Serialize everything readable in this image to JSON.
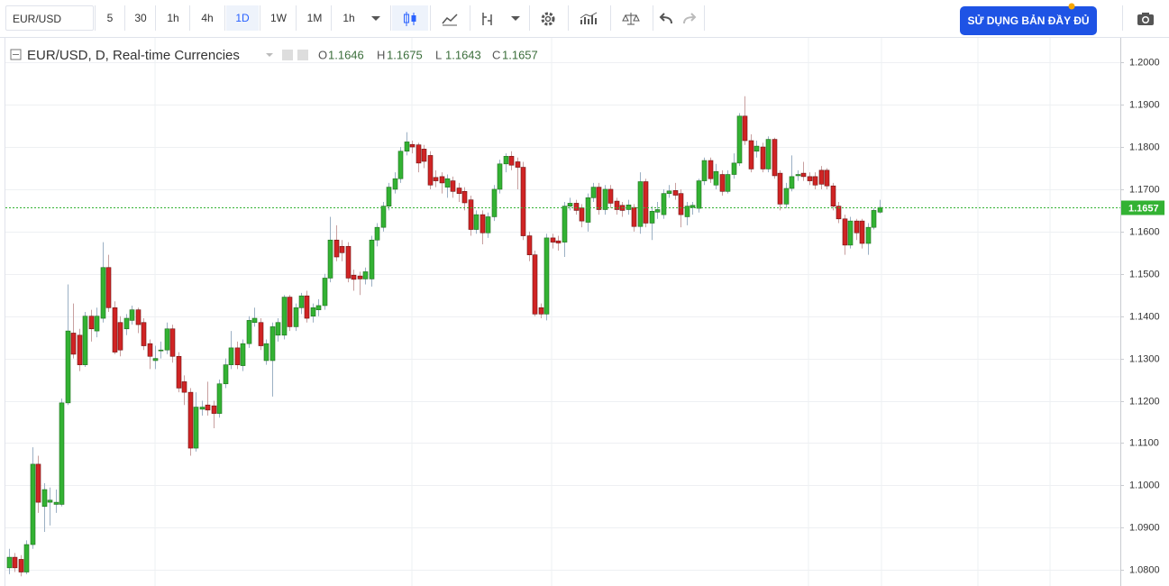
{
  "toolbar": {
    "symbol": "EUR/USD",
    "intervals": [
      "5",
      "30",
      "1h",
      "4h",
      "1D",
      "1W",
      "1M",
      "1h"
    ],
    "cta": "SỬ DỤNG BẢN ĐẦY ĐỦ"
  },
  "chart_data": {
    "type": "candlestick",
    "title": "EUR/USD, D, Real-time Currencies",
    "ohlc_labels": [
      "O",
      "H",
      "L",
      "C"
    ],
    "up_color": "#33b233",
    "down_color": "#d02424",
    "ylim": [
      1.0762,
      1.2058
    ],
    "yticks": [
      {
        "value": 1.08,
        "label": "1.0800"
      },
      {
        "value": 1.09,
        "label": "1.0900"
      },
      {
        "value": 1.1,
        "label": "1.1000"
      },
      {
        "value": 1.11,
        "label": "1.1100"
      },
      {
        "value": 1.12,
        "label": "1.1200"
      },
      {
        "value": 1.13,
        "label": "1.1300"
      },
      {
        "value": 1.14,
        "label": "1.1400"
      },
      {
        "value": 1.15,
        "label": "1.1500"
      },
      {
        "value": 1.16,
        "label": "1.1600"
      },
      {
        "value": 1.17,
        "label": "1.1700"
      },
      {
        "value": 1.18,
        "label": "1.1800"
      },
      {
        "value": 1.19,
        "label": "1.1900"
      },
      {
        "value": 1.2,
        "label": "1.2000"
      }
    ],
    "grid": true,
    "open": [
      1.0805,
      1.083,
      1.0825,
      1.0795,
      1.086,
      1.105,
      1.095,
      1.096,
      1.0955,
      1.0955,
      1.1195,
      1.136,
      1.1355,
      1.1285,
      1.14,
      1.1365,
      1.1395,
      1.1515,
      1.142,
      1.1385,
      1.137,
      1.139,
      1.1415,
      1.1385,
      1.1335,
      1.1295,
      1.1318,
      1.132,
      1.137,
      1.1305,
      1.1245,
      1.122,
      1.1088,
      1.118,
      1.119,
      1.1188,
      1.117,
      1.124,
      1.1285,
      1.1325,
      1.1283,
      1.1335,
      1.1385,
      1.1385,
      1.1295,
      1.1295,
      1.1355,
      1.1355,
      1.1445,
      1.1375,
      1.142,
      1.1448,
      1.14,
      1.1415,
      1.1425,
      1.149,
      1.158,
      1.1565,
      1.1565,
      1.1497,
      1.1495,
      1.1488,
      1.1488,
      1.158,
      1.161,
      1.166,
      1.17,
      1.1725,
      1.179,
      1.1806,
      1.1805,
      1.1795,
      1.178,
      1.1728,
      1.173,
      1.1705,
      1.172,
      1.1703,
      1.1695,
      1.1675,
      1.1605,
      1.164,
      1.1597,
      1.1635,
      1.17,
      1.176,
      1.1778,
      1.1765,
      1.1752,
      1.159,
      1.1545,
      1.142,
      1.1405,
      1.1585,
      1.1578,
      1.1575,
      1.166,
      1.1667,
      1.1656,
      1.1622,
      1.168,
      1.1705,
      1.1652,
      1.17,
      1.1672,
      1.1662,
      1.1652,
      1.1657,
      1.1612,
      1.1718,
      1.162,
      1.1646,
      1.164,
      1.169,
      1.1697,
      1.169,
      1.1635,
      1.1657,
      1.1655,
      1.172,
      1.1768,
      1.171,
      1.1735,
      1.1695,
      1.1735,
      1.1762,
      1.1873,
      1.1815,
      1.179,
      1.18,
      1.1748,
      1.1818,
      1.1738,
      1.1665,
      1.1702,
      1.1732,
      1.1738,
      1.173,
      1.173,
      1.1745,
      1.1745,
      1.1708,
      1.166,
      1.163,
      1.1568,
      1.1625,
      1.1625,
      1.1572,
      1.161,
      1.1646
    ],
    "high": [
      1.085,
      1.084,
      1.0835,
      1.087,
      1.109,
      1.107,
      1.1005,
      1.0995,
      1.099,
      1.1205,
      1.1475,
      1.143,
      1.137,
      1.141,
      1.1415,
      1.142,
      1.1575,
      1.1545,
      1.1435,
      1.14,
      1.1405,
      1.1425,
      1.142,
      1.1395,
      1.1345,
      1.133,
      1.134,
      1.1385,
      1.138,
      1.1315,
      1.126,
      1.123,
      1.122,
      1.12,
      1.1245,
      1.12,
      1.125,
      1.13,
      1.1365,
      1.134,
      1.1345,
      1.14,
      1.142,
      1.1395,
      1.1345,
      1.1385,
      1.1395,
      1.145,
      1.145,
      1.143,
      1.1455,
      1.146,
      1.143,
      1.144,
      1.15,
      1.1635,
      1.1615,
      1.158,
      1.1575,
      1.151,
      1.1505,
      1.1515,
      1.159,
      1.162,
      1.167,
      1.1715,
      1.174,
      1.18,
      1.1835,
      1.1815,
      1.181,
      1.1805,
      1.179,
      1.1745,
      1.174,
      1.1735,
      1.173,
      1.1715,
      1.1705,
      1.1685,
      1.165,
      1.165,
      1.1645,
      1.171,
      1.177,
      1.1785,
      1.179,
      1.1775,
      1.1765,
      1.16,
      1.1555,
      1.143,
      1.1595,
      1.1595,
      1.159,
      1.167,
      1.168,
      1.1675,
      1.1665,
      1.169,
      1.1715,
      1.1715,
      1.171,
      1.171,
      1.168,
      1.167,
      1.1675,
      1.1665,
      1.174,
      1.1725,
      1.166,
      1.167,
      1.17,
      1.171,
      1.1715,
      1.17,
      1.167,
      1.167,
      1.1725,
      1.1775,
      1.1775,
      1.176,
      1.1745,
      1.1745,
      1.1785,
      1.188,
      1.192,
      1.183,
      1.1815,
      1.181,
      1.1825,
      1.1822,
      1.1745,
      1.1715,
      1.178,
      1.1745,
      1.1765,
      1.174,
      1.174,
      1.1755,
      1.175,
      1.1715,
      1.167,
      1.164,
      1.1635,
      1.163,
      1.163,
      1.162,
      1.1655,
      1.1675
    ],
    "low": [
      1.079,
      1.0795,
      1.0785,
      1.079,
      1.085,
      1.0935,
      1.089,
      1.0905,
      1.0935,
      1.095,
      1.119,
      1.13,
      1.127,
      1.128,
      1.134,
      1.135,
      1.1385,
      1.141,
      1.131,
      1.1305,
      1.1355,
      1.138,
      1.136,
      1.132,
      1.1275,
      1.1275,
      1.13,
      1.131,
      1.129,
      1.122,
      1.119,
      1.107,
      1.108,
      1.1165,
      1.1165,
      1.1135,
      1.116,
      1.123,
      1.1275,
      1.1275,
      1.127,
      1.1325,
      1.1375,
      1.132,
      1.1285,
      1.121,
      1.134,
      1.1345,
      1.1365,
      1.1365,
      1.1405,
      1.1385,
      1.1385,
      1.14,
      1.1415,
      1.148,
      1.153,
      1.153,
      1.148,
      1.146,
      1.145,
      1.1475,
      1.147,
      1.1565,
      1.16,
      1.165,
      1.169,
      1.1715,
      1.178,
      1.1785,
      1.174,
      1.175,
      1.17,
      1.1705,
      1.169,
      1.168,
      1.168,
      1.167,
      1.165,
      1.159,
      1.1595,
      1.157,
      1.1585,
      1.1625,
      1.169,
      1.174,
      1.1745,
      1.17,
      1.158,
      1.153,
      1.14,
      1.1395,
      1.139,
      1.156,
      1.1555,
      1.154,
      1.165,
      1.164,
      1.161,
      1.16,
      1.167,
      1.164,
      1.164,
      1.1655,
      1.164,
      1.1635,
      1.164,
      1.16,
      1.1595,
      1.161,
      1.158,
      1.163,
      1.163,
      1.168,
      1.1675,
      1.161,
      1.1615,
      1.164,
      1.1645,
      1.171,
      1.1715,
      1.17,
      1.1685,
      1.169,
      1.1725,
      1.1755,
      1.1805,
      1.174,
      1.1775,
      1.174,
      1.174,
      1.1725,
      1.165,
      1.1655,
      1.1695,
      1.172,
      1.172,
      1.171,
      1.17,
      1.17,
      1.17,
      1.165,
      1.162,
      1.1545,
      1.156,
      1.158,
      1.156,
      1.1545,
      1.1605,
      1.1643
    ],
    "close": [
      1.083,
      1.0805,
      1.0795,
      1.086,
      1.105,
      1.096,
      1.099,
      1.0965,
      1.096,
      1.1195,
      1.1365,
      1.131,
      1.1285,
      1.14,
      1.137,
      1.14,
      1.1515,
      1.142,
      1.1315,
      1.132,
      1.1395,
      1.1415,
      1.138,
      1.133,
      1.1305,
      1.13,
      1.132,
      1.137,
      1.1305,
      1.123,
      1.122,
      1.1088,
      1.1185,
      1.1185,
      1.1178,
      1.117,
      1.124,
      1.1285,
      1.1325,
      1.1285,
      1.1335,
      1.139,
      1.1395,
      1.133,
      1.1335,
      1.1375,
      1.1385,
      1.1445,
      1.1375,
      1.142,
      1.1448,
      1.1395,
      1.142,
      1.1425,
      1.149,
      1.158,
      1.154,
      1.155,
      1.149,
      1.1487,
      1.1488,
      1.1505,
      1.158,
      1.161,
      1.166,
      1.1705,
      1.1725,
      1.179,
      1.1812,
      1.18,
      1.1762,
      1.1766,
      1.171,
      1.172,
      1.1715,
      1.1725,
      1.1695,
      1.169,
      1.1668,
      1.1605,
      1.164,
      1.1597,
      1.1635,
      1.17,
      1.176,
      1.1778,
      1.1757,
      1.1752,
      1.159,
      1.1545,
      1.1405,
      1.1405,
      1.1585,
      1.1575,
      1.1573,
      1.166,
      1.1667,
      1.165,
      1.1625,
      1.168,
      1.1705,
      1.1652,
      1.17,
      1.1667,
      1.1652,
      1.165,
      1.1663,
      1.1612,
      1.1718,
      1.162,
      1.1648,
      1.1652,
      1.169,
      1.1696,
      1.1686,
      1.164,
      1.166,
      1.1662,
      1.172,
      1.1768,
      1.1725,
      1.1742,
      1.1695,
      1.1735,
      1.1762,
      1.1873,
      1.1815,
      1.1748,
      1.1802,
      1.1748,
      1.1818,
      1.1732,
      1.1665,
      1.1702,
      1.173,
      1.1735,
      1.173,
      1.172,
      1.171,
      1.1712,
      1.1708,
      1.166,
      1.163,
      1.1568,
      1.1625,
      1.1597,
      1.1572,
      1.161,
      1.165,
      1.1657
    ]
  }
}
